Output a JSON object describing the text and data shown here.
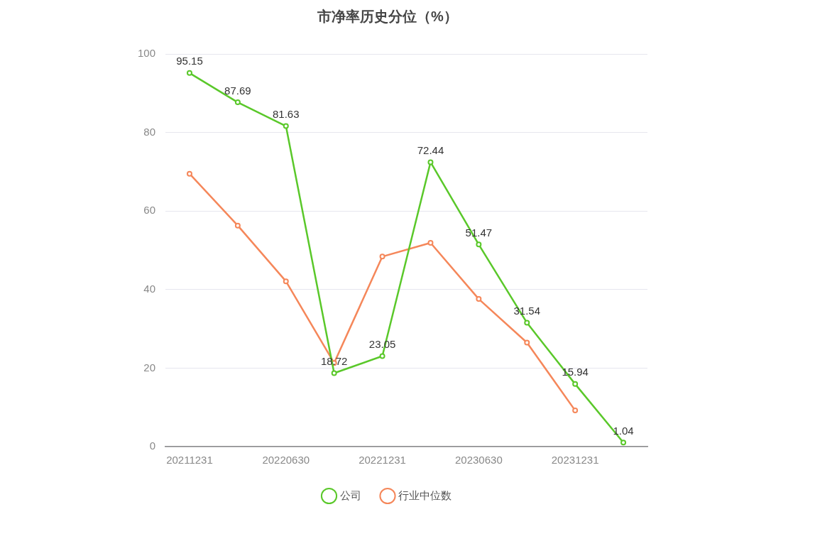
{
  "chart_data": {
    "type": "line",
    "title": "市净率历史分位（%）",
    "categories": [
      "20211231",
      null,
      "20220630",
      null,
      "20221231",
      null,
      "20230630",
      null,
      "20231231",
      null
    ],
    "series": [
      {
        "name": "公司",
        "color": "#5ac82a",
        "values": [
          95.15,
          87.69,
          81.63,
          18.72,
          23.05,
          72.44,
          51.47,
          31.54,
          15.94,
          1.04
        ],
        "value_labels": [
          "95.15",
          "87.69",
          "81.63",
          "18.72",
          "23.05",
          "72.44",
          "51.47",
          "31.54",
          "15.94",
          "1.04"
        ]
      },
      {
        "name": "行业中位数",
        "color": "#f5875a",
        "values": [
          69.5,
          56.3,
          42.1,
          21.3,
          48.4,
          51.9,
          37.6,
          26.5,
          9.2,
          null
        ]
      }
    ],
    "ylim": [
      0,
      100
    ],
    "yticks": [
      0,
      20,
      40,
      60,
      80,
      100
    ],
    "grid": "y",
    "legend": "bottom",
    "marker": "circle",
    "line_style": "solid"
  }
}
